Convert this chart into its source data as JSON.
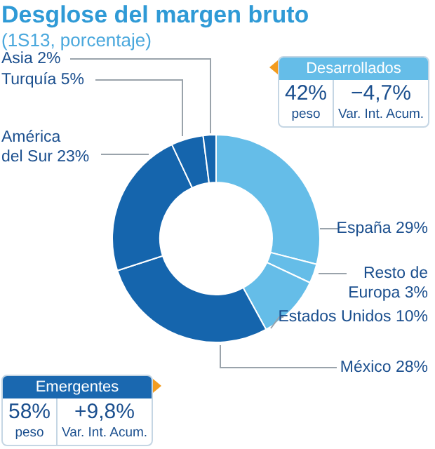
{
  "chart_data": {
    "type": "donut",
    "title": "Desglose del margen bruto",
    "subtitle": "(1S13, porcentaje)",
    "categories": [
      "España",
      "Resto de Europa",
      "Estados Unidos",
      "México",
      "América del Sur",
      "Turquía",
      "Asia"
    ],
    "values": [
      29,
      3,
      10,
      28,
      23,
      5,
      2
    ],
    "value_labels": [
      "29%",
      "3%",
      "10%",
      "28%",
      "23%",
      "5%",
      "2%"
    ],
    "colors": [
      "#65bde8",
      "#65bde8",
      "#65bde8",
      "#1565ad",
      "#1565ad",
      "#1565ad",
      "#1565ad"
    ],
    "annotations": [
      "Desarrollados",
      "42%",
      "peso",
      "−4,7%",
      "Var. Int. Acum.",
      "Emergentes",
      "58%",
      "peso",
      "+9,8%",
      "Var. Int. Acum."
    ]
  }
}
